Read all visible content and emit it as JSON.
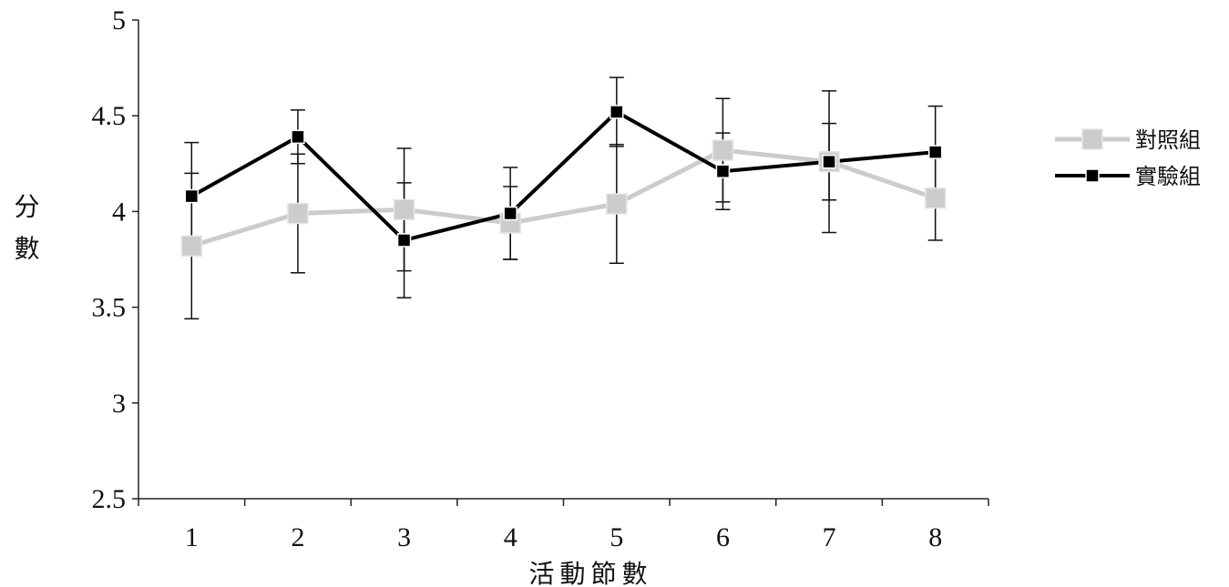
{
  "chart_data": {
    "type": "line",
    "x": [
      1,
      2,
      3,
      4,
      5,
      6,
      7,
      8
    ],
    "x_tick_labels": [
      "1",
      "2",
      "3",
      "4",
      "5",
      "6",
      "7",
      "8"
    ],
    "ylim": [
      2.5,
      5
    ],
    "y_ticks": [
      2.5,
      3,
      3.5,
      4,
      4.5,
      5
    ],
    "y_tick_labels": [
      "2.5",
      "3",
      "3.5",
      "4",
      "4.5",
      "5"
    ],
    "xlabel": "活動節數",
    "ylabel": "分數",
    "grid": false,
    "legend_position": "right",
    "series": [
      {
        "name": "對照組",
        "color": "#cccccc",
        "marker": "square",
        "values": [
          3.82,
          3.99,
          4.01,
          3.94,
          4.04,
          4.32,
          4.26,
          4.07
        ],
        "error": [
          0.38,
          0.31,
          0.32,
          0.19,
          0.31,
          0.27,
          0.2,
          0.22
        ]
      },
      {
        "name": "實驗組",
        "color": "#000000",
        "marker": "square",
        "values": [
          4.08,
          4.39,
          3.85,
          3.99,
          4.52,
          4.21,
          4.26,
          4.31
        ],
        "error": [
          0.28,
          0.14,
          0.3,
          0.24,
          0.18,
          0.2,
          0.37,
          0.24
        ]
      }
    ]
  }
}
